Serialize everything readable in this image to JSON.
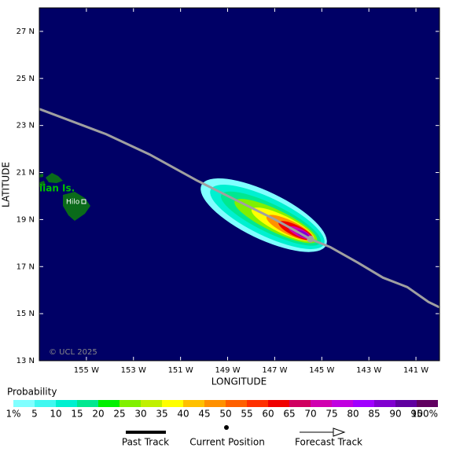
{
  "chart_data": {
    "type": "track-map",
    "x_label": "LONGITUDE",
    "y_label": "LATITUDE",
    "xlim": [
      -157,
      -140
    ],
    "ylim": [
      13,
      28
    ],
    "xticks": [
      {
        "value": -155,
        "label": "155 W"
      },
      {
        "value": -153,
        "label": "153 W"
      },
      {
        "value": -151,
        "label": "151 W"
      },
      {
        "value": -149,
        "label": "149 W"
      },
      {
        "value": -147,
        "label": "147 W"
      },
      {
        "value": -145,
        "label": "145 W"
      },
      {
        "value": -143,
        "label": "143 W"
      },
      {
        "value": -141,
        "label": "141 W"
      }
    ],
    "yticks": [
      {
        "value": 27,
        "label": "27 N"
      },
      {
        "value": 25,
        "label": "25 N"
      },
      {
        "value": 23,
        "label": "23 N"
      },
      {
        "value": 21,
        "label": "21 N"
      },
      {
        "value": 19,
        "label": "19 N"
      },
      {
        "value": 17,
        "label": "17 N"
      },
      {
        "value": 15,
        "label": "15 N"
      },
      {
        "value": 13,
        "label": "13 N"
      }
    ],
    "track": {
      "color": "#a0a0a0",
      "lon": [
        -157,
        -154.16,
        -152.32,
        -150.32,
        -148.65,
        -146.98,
        -145.48,
        -144.64,
        -143.47,
        -142.4,
        -141.37,
        -140.47,
        -140.0
      ],
      "lat": [
        23.7,
        22.63,
        21.77,
        20.67,
        19.83,
        19.0,
        18.17,
        17.83,
        17.17,
        16.53,
        16.13,
        15.5,
        15.27
      ]
    },
    "current_position": {
      "lon": -145.48,
      "lat": 18.17
    },
    "island_label": "iian Is.",
    "city_label": "Hilo",
    "copyright": "© UCL 2025",
    "legend": {
      "title": "Probability",
      "labels": [
        "1%",
        "5",
        "10",
        "15",
        "20",
        "25",
        "30",
        "35",
        "40",
        "45",
        "50",
        "55",
        "60",
        "65",
        "70",
        "75",
        "80",
        "85",
        "90",
        "95",
        "100%"
      ],
      "colors": [
        "#80ffff",
        "#40f8f0",
        "#00f0d0",
        "#00e890",
        "#00f000",
        "#80f000",
        "#c0f000",
        "#ffff00",
        "#ffc000",
        "#ff9000",
        "#ff6000",
        "#ff3000",
        "#f00000",
        "#d00060",
        "#d000b0",
        "#c000e0",
        "#a000ff",
        "#8000d0",
        "#6000a0",
        "#600060"
      ]
    },
    "key": {
      "past_track": "Past Track",
      "current_position": "Current Position",
      "forecast_track": "Forecast Track"
    }
  }
}
